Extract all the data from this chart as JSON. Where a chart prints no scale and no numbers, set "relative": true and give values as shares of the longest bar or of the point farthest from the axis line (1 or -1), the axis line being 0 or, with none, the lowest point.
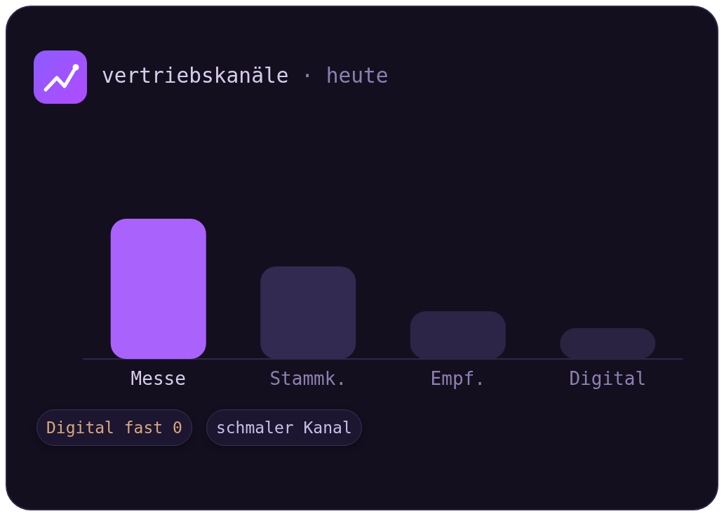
{
  "chart_data": {
    "type": "bar",
    "title": "vertriebskanäle",
    "subtitle": "· heute",
    "categories": [
      "Messe",
      "Stammk.",
      "Empf.",
      "Digital"
    ],
    "values": [
      1,
      0.66,
      0.34,
      0.22
    ],
    "colors": [
      "#aa62fd",
      "#322a50",
      "#2d2547",
      "#2a2342"
    ],
    "relative": true,
    "annotations": [
      "Digital fast 0",
      "schmaler Kanal"
    ]
  }
}
